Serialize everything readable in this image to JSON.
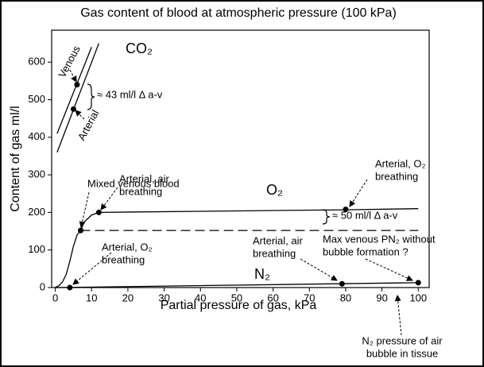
{
  "chart_data": {
    "type": "line",
    "title": "Gas content of blood at atmospheric pressure (100 kPa)",
    "x_label": "Partial pressure of gas, kPa",
    "y_label": "Content of gas ml/l",
    "xlim": [
      -1,
      103
    ],
    "ylim": [
      0,
      685
    ],
    "xticks": [
      0,
      10,
      20,
      30,
      40,
      50,
      60,
      70,
      80,
      90,
      100
    ],
    "yticks": [
      0,
      100,
      200,
      300,
      400,
      500,
      600
    ],
    "series": [
      {
        "color": "#000000",
        "x": [
          0.5,
          10
        ],
        "values": [
          410,
          640
        ]
      },
      {
        "color": "#000000",
        "x": [
          0.5,
          12
        ],
        "values": [
          360,
          650
        ]
      },
      {
        "color": "#000000",
        "x": [
          0,
          1,
          2,
          3,
          4,
          5,
          6,
          7,
          8,
          10,
          12,
          20,
          40,
          60,
          80,
          100
        ],
        "values": [
          0,
          5,
          15,
          35,
          70,
          110,
          140,
          152,
          175,
          193,
          200,
          201,
          203,
          205,
          207,
          210
        ]
      },
      {
        "color": "#000000",
        "dashed": true,
        "x": [
          7,
          100
        ],
        "values": [
          152,
          152
        ]
      },
      {
        "color": "#000000",
        "x": [
          0,
          100
        ],
        "values": [
          0,
          13
        ]
      }
    ],
    "points": {
      "color": "#000000",
      "x": [
        6,
        5,
        7,
        12,
        80,
        4,
        79,
        100
      ],
      "values": [
        540,
        475,
        152,
        200,
        208,
        0,
        10,
        13
      ]
    },
    "annotations": [
      [
        "CO₂"
      ],
      [
        "Venous"
      ],
      [
        "Arterial"
      ],
      [
        "≈ 43 ml/l Δ a-v"
      ],
      [
        "Mixed  venous blood"
      ],
      [
        "Arterial, air",
        "breathing"
      ],
      [
        "O₂"
      ],
      [
        "Arterial, O₂",
        "breathing"
      ],
      [
        "≈ 50 ml/l Δ a-v"
      ],
      [
        "Arterial, O₂",
        "breathing"
      ],
      [
        "Arterial, air",
        "breathing"
      ],
      [
        "Max venous PN₂ without",
        "bubble formation ?"
      ],
      [
        "N₂"
      ],
      [
        "N₂ pressure of air",
        "bubble in tissue"
      ]
    ]
  }
}
